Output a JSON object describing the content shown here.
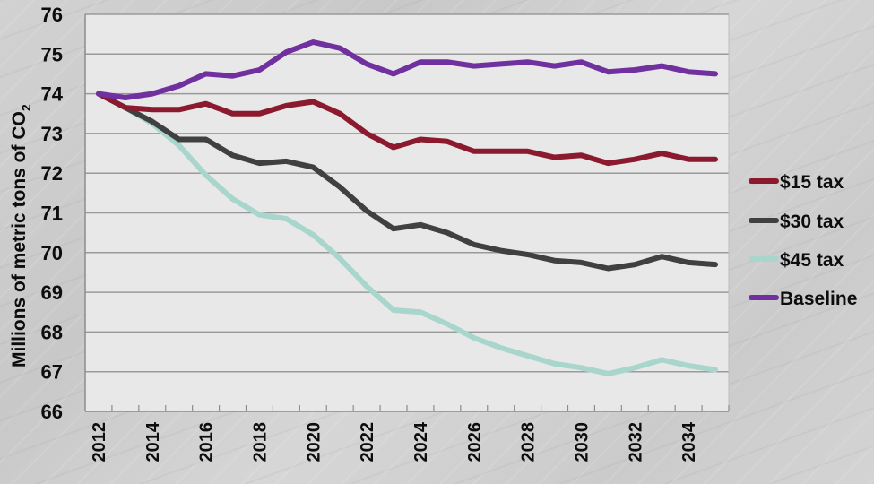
{
  "chart_data": {
    "type": "line",
    "title": "",
    "xlabel": "",
    "ylabel": "Millions of metric tons of CO2",
    "ylabel_main": "Millions of metric tons of CO",
    "ylabel_subscript": "2",
    "ylim": [
      66,
      76
    ],
    "yticks": [
      66,
      67,
      68,
      69,
      70,
      71,
      72,
      73,
      74,
      75,
      76
    ],
    "grid": true,
    "legend_position": "right",
    "x": [
      2012,
      2013,
      2014,
      2015,
      2016,
      2017,
      2018,
      2019,
      2020,
      2021,
      2022,
      2023,
      2024,
      2025,
      2026,
      2027,
      2028,
      2029,
      2030,
      2031,
      2032,
      2033,
      2034,
      2035
    ],
    "xtick_labels": [
      "2012",
      "2014",
      "2016",
      "2018",
      "2020",
      "2022",
      "2024",
      "2026",
      "2028",
      "2030",
      "2032",
      "2034"
    ],
    "series": [
      {
        "name": "$15 tax",
        "color": "#8b1a2e",
        "values": [
          74.0,
          73.65,
          73.6,
          73.6,
          73.75,
          73.5,
          73.5,
          73.7,
          73.8,
          73.5,
          73.0,
          72.65,
          72.85,
          72.8,
          72.55,
          72.55,
          72.55,
          72.4,
          72.45,
          72.25,
          72.35,
          72.5,
          72.35,
          72.35
        ]
      },
      {
        "name": "$30 tax",
        "color": "#404040",
        "values": [
          74.0,
          73.65,
          73.3,
          72.85,
          72.85,
          72.45,
          72.25,
          72.3,
          72.15,
          71.65,
          71.05,
          70.6,
          70.7,
          70.5,
          70.2,
          70.05,
          69.95,
          69.8,
          69.75,
          69.6,
          69.7,
          69.9,
          69.75,
          69.7
        ]
      },
      {
        "name": "$45 tax",
        "color": "#a8d5cc",
        "values": [
          74.0,
          73.65,
          73.25,
          72.7,
          71.95,
          71.35,
          70.95,
          70.85,
          70.45,
          69.85,
          69.15,
          68.55,
          68.5,
          68.2,
          67.85,
          67.6,
          67.4,
          67.2,
          67.1,
          66.95,
          67.1,
          67.3,
          67.15,
          67.05
        ]
      },
      {
        "name": "Baseline",
        "color": "#7030a0",
        "values": [
          74.0,
          73.9,
          74.0,
          74.2,
          74.5,
          74.45,
          74.6,
          75.05,
          75.3,
          75.15,
          74.75,
          74.5,
          74.8,
          74.8,
          74.7,
          74.75,
          74.8,
          74.7,
          74.8,
          74.55,
          74.6,
          74.7,
          74.55,
          74.5
        ]
      }
    ]
  },
  "style": {
    "plot_background": "#e8e8e8",
    "gridline_color": "#9a9a9a",
    "axis_color": "#8c8c8c"
  }
}
